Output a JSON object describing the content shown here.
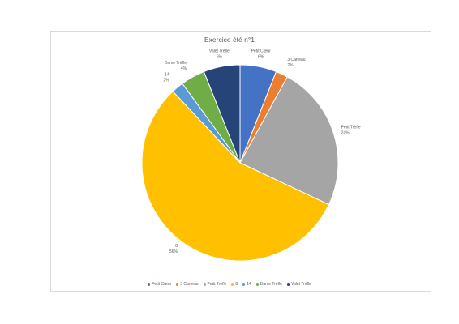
{
  "chart_data": {
    "type": "pie",
    "title": "Exercice été n°1",
    "categories": [
      "Petit Cœur",
      "3 Carreau",
      "Petit Trèfle",
      "8",
      "14",
      "Dame Trèfle",
      "Valet Trèfle"
    ],
    "values": [
      6,
      2,
      24,
      56,
      2,
      4,
      6
    ],
    "labels_pct": [
      "6%",
      "2%",
      "24%",
      "56%",
      "2%",
      "4%",
      "6%"
    ],
    "colors": [
      "#4472c4",
      "#ed7d31",
      "#a5a5a5",
      "#ffc000",
      "#5b9bd5",
      "#70ad47",
      "#264478"
    ],
    "legend_position": "bottom",
    "start_angle_deg": 0,
    "direction": "clockwise"
  }
}
